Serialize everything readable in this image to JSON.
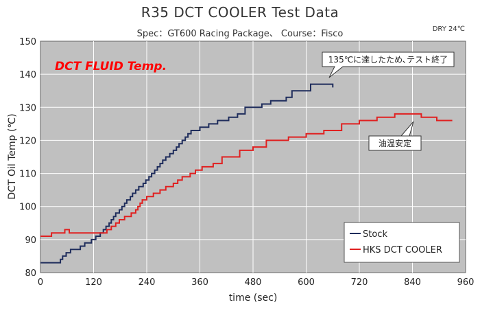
{
  "title": "R35 DCT COOLER  Test Data",
  "subtitle": "Spec：GT600 Racing Package、 Course：Fisco",
  "condition": "DRY  24℃",
  "plot_label": "DCT FLUID Temp.",
  "colors": {
    "plot_bg": "#c0c0c0",
    "grid": "#ffffff",
    "stock": "#1f2d5c",
    "hks": "#e02020",
    "plot_label": "#ff0000"
  },
  "chart_data": {
    "type": "line",
    "xlabel": "time (sec)",
    "ylabel": "DCT Oil Temp (℃)",
    "xlim": [
      0,
      960
    ],
    "ylim": [
      80,
      150
    ],
    "xticks": [
      0,
      120,
      240,
      360,
      480,
      600,
      720,
      840,
      960
    ],
    "yticks": [
      80,
      90,
      100,
      110,
      120,
      130,
      140,
      150
    ],
    "grid": true,
    "legend_position": "bottom-right",
    "series": [
      {
        "name": "Stock",
        "color": "#1f2d5c",
        "points": [
          [
            0,
            83
          ],
          [
            45,
            83
          ],
          [
            45,
            84
          ],
          [
            50,
            84
          ],
          [
            50,
            85
          ],
          [
            58,
            85
          ],
          [
            58,
            86
          ],
          [
            68,
            86
          ],
          [
            68,
            87
          ],
          [
            90,
            87
          ],
          [
            90,
            88
          ],
          [
            100,
            88
          ],
          [
            100,
            89
          ],
          [
            115,
            89
          ],
          [
            115,
            90
          ],
          [
            125,
            90
          ],
          [
            125,
            91
          ],
          [
            135,
            91
          ],
          [
            135,
            92
          ],
          [
            142,
            92
          ],
          [
            142,
            93
          ],
          [
            148,
            93
          ],
          [
            148,
            94
          ],
          [
            155,
            94
          ],
          [
            155,
            95
          ],
          [
            160,
            95
          ],
          [
            160,
            96
          ],
          [
            165,
            96
          ],
          [
            165,
            97
          ],
          [
            170,
            97
          ],
          [
            170,
            98
          ],
          [
            178,
            98
          ],
          [
            178,
            99
          ],
          [
            184,
            99
          ],
          [
            184,
            100
          ],
          [
            190,
            100
          ],
          [
            190,
            101
          ],
          [
            195,
            101
          ],
          [
            195,
            102
          ],
          [
            203,
            102
          ],
          [
            203,
            103
          ],
          [
            208,
            103
          ],
          [
            208,
            104
          ],
          [
            215,
            104
          ],
          [
            215,
            105
          ],
          [
            222,
            105
          ],
          [
            222,
            106
          ],
          [
            232,
            106
          ],
          [
            232,
            107
          ],
          [
            238,
            107
          ],
          [
            238,
            108
          ],
          [
            245,
            108
          ],
          [
            245,
            109
          ],
          [
            251,
            109
          ],
          [
            251,
            110
          ],
          [
            258,
            110
          ],
          [
            258,
            111
          ],
          [
            264,
            111
          ],
          [
            264,
            112
          ],
          [
            270,
            112
          ],
          [
            270,
            113
          ],
          [
            276,
            113
          ],
          [
            276,
            114
          ],
          [
            283,
            114
          ],
          [
            283,
            115
          ],
          [
            292,
            115
          ],
          [
            292,
            116
          ],
          [
            300,
            116
          ],
          [
            300,
            117
          ],
          [
            307,
            117
          ],
          [
            307,
            118
          ],
          [
            313,
            118
          ],
          [
            313,
            119
          ],
          [
            320,
            119
          ],
          [
            320,
            120
          ],
          [
            327,
            120
          ],
          [
            327,
            121
          ],
          [
            333,
            121
          ],
          [
            333,
            122
          ],
          [
            340,
            122
          ],
          [
            340,
            123
          ],
          [
            360,
            123
          ],
          [
            360,
            124
          ],
          [
            380,
            124
          ],
          [
            380,
            125
          ],
          [
            400,
            125
          ],
          [
            400,
            126
          ],
          [
            425,
            126
          ],
          [
            425,
            127
          ],
          [
            445,
            127
          ],
          [
            445,
            128
          ],
          [
            462,
            128
          ],
          [
            462,
            130
          ],
          [
            500,
            130
          ],
          [
            500,
            131
          ],
          [
            520,
            131
          ],
          [
            520,
            132
          ],
          [
            555,
            132
          ],
          [
            555,
            133
          ],
          [
            568,
            133
          ],
          [
            568,
            135
          ],
          [
            610,
            135
          ],
          [
            610,
            137
          ],
          [
            660,
            137
          ],
          [
            660,
            136
          ]
        ]
      },
      {
        "name": "HKS DCT COOLER",
        "color": "#e02020",
        "points": [
          [
            0,
            91
          ],
          [
            25,
            91
          ],
          [
            25,
            92
          ],
          [
            40,
            92
          ],
          [
            40,
            92
          ],
          [
            55,
            92
          ],
          [
            55,
            93
          ],
          [
            65,
            93
          ],
          [
            65,
            92
          ],
          [
            90,
            92
          ],
          [
            105,
            92
          ],
          [
            150,
            92
          ],
          [
            150,
            93
          ],
          [
            160,
            93
          ],
          [
            160,
            94
          ],
          [
            170,
            94
          ],
          [
            170,
            95
          ],
          [
            178,
            95
          ],
          [
            178,
            96
          ],
          [
            190,
            96
          ],
          [
            190,
            97
          ],
          [
            205,
            97
          ],
          [
            205,
            98
          ],
          [
            215,
            98
          ],
          [
            215,
            99
          ],
          [
            220,
            99
          ],
          [
            220,
            100
          ],
          [
            225,
            100
          ],
          [
            225,
            101
          ],
          [
            230,
            101
          ],
          [
            230,
            102
          ],
          [
            240,
            102
          ],
          [
            240,
            103
          ],
          [
            255,
            103
          ],
          [
            255,
            104
          ],
          [
            270,
            104
          ],
          [
            270,
            105
          ],
          [
            283,
            105
          ],
          [
            283,
            106
          ],
          [
            300,
            106
          ],
          [
            300,
            107
          ],
          [
            310,
            107
          ],
          [
            310,
            108
          ],
          [
            320,
            108
          ],
          [
            320,
            109
          ],
          [
            338,
            109
          ],
          [
            338,
            110
          ],
          [
            350,
            110
          ],
          [
            350,
            111
          ],
          [
            365,
            111
          ],
          [
            365,
            112
          ],
          [
            390,
            112
          ],
          [
            390,
            113
          ],
          [
            410,
            113
          ],
          [
            410,
            115
          ],
          [
            450,
            115
          ],
          [
            450,
            117
          ],
          [
            480,
            117
          ],
          [
            480,
            118
          ],
          [
            510,
            118
          ],
          [
            510,
            120
          ],
          [
            560,
            120
          ],
          [
            560,
            121
          ],
          [
            600,
            121
          ],
          [
            600,
            122
          ],
          [
            640,
            122
          ],
          [
            640,
            123
          ],
          [
            680,
            123
          ],
          [
            680,
            125
          ],
          [
            720,
            125
          ],
          [
            720,
            126
          ],
          [
            760,
            126
          ],
          [
            760,
            127
          ],
          [
            800,
            127
          ],
          [
            800,
            128
          ],
          [
            860,
            128
          ],
          [
            860,
            127
          ],
          [
            895,
            127
          ],
          [
            895,
            126
          ],
          [
            930,
            126
          ]
        ]
      }
    ],
    "annotations": [
      {
        "text": "135℃に達したため､テスト終了",
        "x": 610,
        "y": 137
      },
      {
        "text": "油温安定",
        "x": 835,
        "y": 127
      }
    ]
  }
}
